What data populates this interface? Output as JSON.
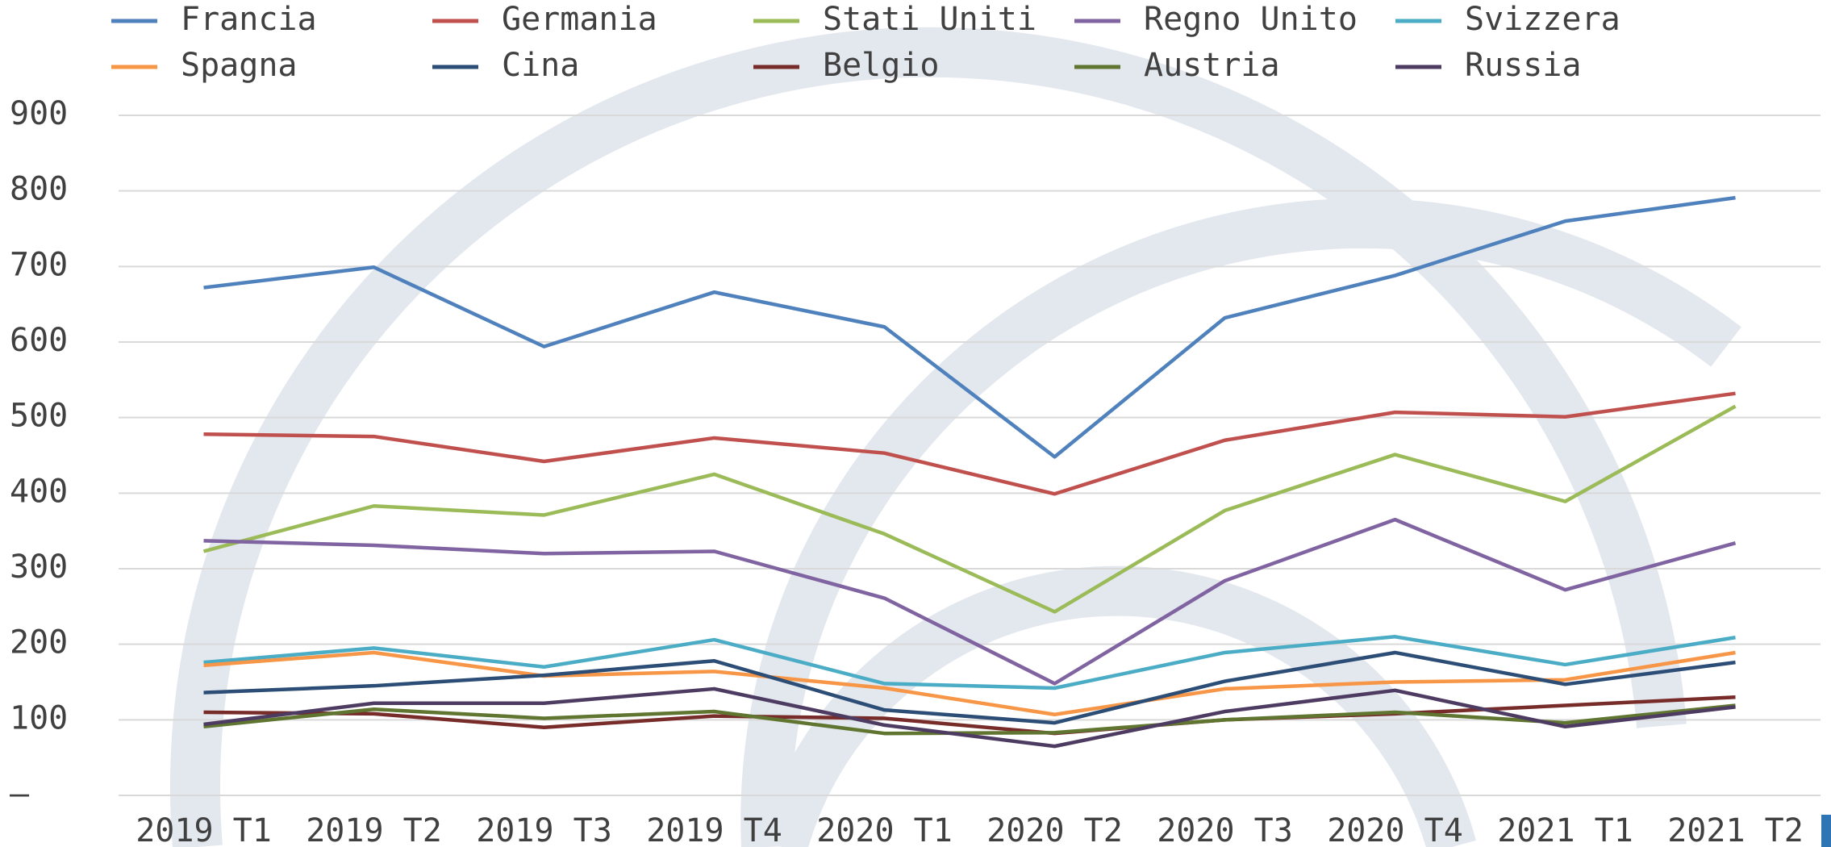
{
  "chart_data": {
    "type": "line",
    "categories": [
      "2019 T1",
      "2019 T2",
      "2019 T3",
      "2019 T4",
      "2020 T1",
      "2020 T2",
      "2020 T3",
      "2020 T4",
      "2021 T1",
      "2021 T2"
    ],
    "series": [
      {
        "name": "Francia",
        "color": "#4f81bd",
        "values": [
          672,
          699,
          594,
          666,
          620,
          448,
          632,
          688,
          760,
          791
        ]
      },
      {
        "name": "Germania",
        "color": "#c0504d",
        "values": [
          478,
          475,
          442,
          473,
          453,
          399,
          470,
          507,
          501,
          532
        ]
      },
      {
        "name": "Stati Uniti",
        "color": "#9bbb59",
        "values": [
          323,
          383,
          371,
          425,
          346,
          243,
          377,
          451,
          389,
          515
        ]
      },
      {
        "name": "Regno Unito",
        "color": "#8064a2",
        "values": [
          337,
          331,
          320,
          323,
          261,
          148,
          284,
          365,
          272,
          334
        ]
      },
      {
        "name": "Svizzera",
        "color": "#4bacc6",
        "values": [
          176,
          195,
          170,
          206,
          148,
          142,
          189,
          210,
          173,
          209
        ]
      },
      {
        "name": "Spagna",
        "color": "#f79646",
        "values": [
          172,
          189,
          158,
          164,
          142,
          107,
          141,
          150,
          153,
          189
        ]
      },
      {
        "name": "Cina",
        "color": "#2c4d75",
        "values": [
          136,
          145,
          159,
          178,
          113,
          96,
          151,
          189,
          147,
          176
        ]
      },
      {
        "name": "Belgio",
        "color": "#772c2a",
        "values": [
          110,
          108,
          90,
          105,
          102,
          82,
          100,
          108,
          119,
          130
        ]
      },
      {
        "name": "Austria",
        "color": "#5f7530",
        "values": [
          91,
          114,
          102,
          111,
          82,
          83,
          100,
          110,
          96,
          119
        ]
      },
      {
        "name": "Russia",
        "color": "#4d3b62",
        "values": [
          94,
          122,
          122,
          141,
          93,
          65,
          111,
          139,
          91,
          117
        ]
      }
    ],
    "ylim": [
      0,
      900
    ],
    "yticks": [
      {
        "value": 0,
        "label": "–"
      },
      100,
      200,
      300,
      400,
      500,
      600,
      700,
      800,
      900
    ],
    "grid": true,
    "legend": "top"
  }
}
